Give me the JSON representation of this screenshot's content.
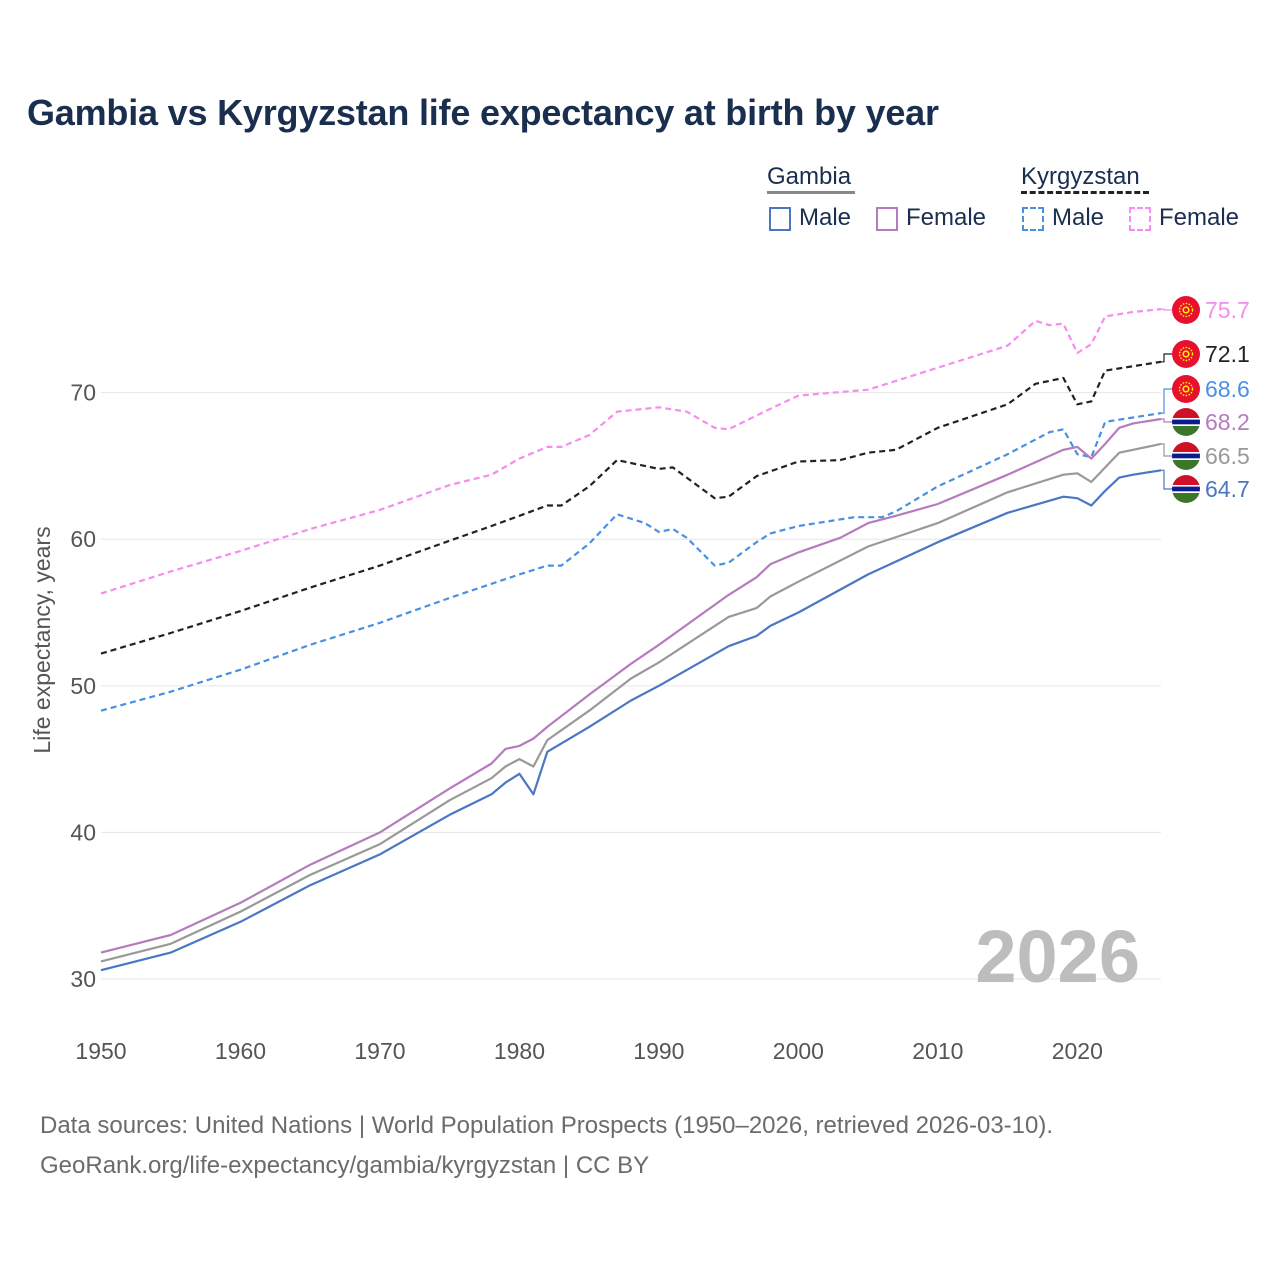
{
  "title": "Gambia vs Kyrgyzstan life expectancy at birth by year",
  "legend": {
    "groups": [
      {
        "name": "Gambia",
        "header_color": "#888888",
        "header_style": "solid",
        "items": [
          {
            "label": "Male",
            "color": "#4a76c4",
            "style": "solid"
          },
          {
            "label": "Female",
            "color": "#b67bbf",
            "style": "solid"
          }
        ]
      },
      {
        "name": "Kyrgyzstan",
        "header_color": "#222222",
        "header_style": "dashed",
        "items": [
          {
            "label": "Male",
            "color": "#4a90e2",
            "style": "dashed"
          },
          {
            "label": "Female",
            "color": "#f58cf0",
            "style": "dashed"
          }
        ]
      }
    ]
  },
  "year_watermark": "2026",
  "source": {
    "line1": "Data sources: United Nations | World Population Prospects (1950–2026, retrieved 2026-03-10).",
    "line2": "GeoRank.org/life-expectancy/gambia/kyrgyzstan | CC BY"
  },
  "chart_data": {
    "type": "line",
    "title": "Gambia vs Kyrgyzstan life expectancy at birth by year",
    "xlabel": "",
    "ylabel": "Life expectancy, years",
    "xlim": [
      1950,
      2026
    ],
    "ylim": [
      27,
      77
    ],
    "x_ticks": [
      1950,
      1960,
      1970,
      1980,
      1990,
      2000,
      2010,
      2020
    ],
    "y_ticks": [
      30,
      40,
      50,
      60,
      70
    ],
    "grid": true,
    "series": [
      {
        "name": "Kyrgyzstan Female",
        "country": "Kyrgyzstan",
        "color": "#f58cf0",
        "dash": true,
        "end_label": "75.7",
        "flag": "kyrgyzstan",
        "points": [
          [
            1950,
            56.3
          ],
          [
            1955,
            57.8
          ],
          [
            1960,
            59.2
          ],
          [
            1965,
            60.7
          ],
          [
            1970,
            62.0
          ],
          [
            1975,
            63.7
          ],
          [
            1978,
            64.4
          ],
          [
            1980,
            65.5
          ],
          [
            1982,
            66.3
          ],
          [
            1983,
            66.3
          ],
          [
            1985,
            67.1
          ],
          [
            1987,
            68.7
          ],
          [
            1990,
            69.0
          ],
          [
            1992,
            68.7
          ],
          [
            1994,
            67.6
          ],
          [
            1995,
            67.5
          ],
          [
            1998,
            68.9
          ],
          [
            2000,
            69.8
          ],
          [
            2005,
            70.2
          ],
          [
            2010,
            71.7
          ],
          [
            2015,
            73.2
          ],
          [
            2017,
            74.9
          ],
          [
            2018,
            74.6
          ],
          [
            2019,
            74.7
          ],
          [
            2020,
            72.7
          ],
          [
            2021,
            73.3
          ],
          [
            2022,
            75.2
          ],
          [
            2024,
            75.5
          ],
          [
            2026,
            75.7
          ]
        ]
      },
      {
        "name": "Kyrgyzstan Total",
        "country": "Kyrgyzstan",
        "color": "#222222",
        "dash": true,
        "end_label": "72.1",
        "flag": "kyrgyzstan",
        "points": [
          [
            1950,
            52.2
          ],
          [
            1955,
            53.6
          ],
          [
            1960,
            55.1
          ],
          [
            1965,
            56.7
          ],
          [
            1970,
            58.2
          ],
          [
            1975,
            59.9
          ],
          [
            1978,
            60.9
          ],
          [
            1980,
            61.6
          ],
          [
            1982,
            62.3
          ],
          [
            1983,
            62.3
          ],
          [
            1985,
            63.6
          ],
          [
            1987,
            65.4
          ],
          [
            1990,
            64.8
          ],
          [
            1991,
            64.9
          ],
          [
            1994,
            62.8
          ],
          [
            1995,
            62.9
          ],
          [
            1997,
            64.3
          ],
          [
            2000,
            65.3
          ],
          [
            2003,
            65.4
          ],
          [
            2005,
            65.9
          ],
          [
            2007,
            66.1
          ],
          [
            2010,
            67.6
          ],
          [
            2015,
            69.2
          ],
          [
            2017,
            70.6
          ],
          [
            2019,
            71.0
          ],
          [
            2020,
            69.2
          ],
          [
            2021,
            69.4
          ],
          [
            2022,
            71.5
          ],
          [
            2024,
            71.8
          ],
          [
            2026,
            72.1
          ]
        ]
      },
      {
        "name": "Kyrgyzstan Male",
        "country": "Kyrgyzstan",
        "color": "#4a90e2",
        "dash": true,
        "end_label": "68.6",
        "flag": "kyrgyzstan",
        "points": [
          [
            1950,
            48.3
          ],
          [
            1955,
            49.6
          ],
          [
            1960,
            51.1
          ],
          [
            1965,
            52.8
          ],
          [
            1970,
            54.3
          ],
          [
            1975,
            56.0
          ],
          [
            1980,
            57.6
          ],
          [
            1982,
            58.2
          ],
          [
            1983,
            58.2
          ],
          [
            1985,
            59.7
          ],
          [
            1987,
            61.7
          ],
          [
            1989,
            61.1
          ],
          [
            1990,
            60.5
          ],
          [
            1991,
            60.7
          ],
          [
            1992,
            60.1
          ],
          [
            1994,
            58.2
          ],
          [
            1995,
            58.4
          ],
          [
            1997,
            59.8
          ],
          [
            1998,
            60.4
          ],
          [
            2000,
            60.9
          ],
          [
            2004,
            61.5
          ],
          [
            2006,
            61.5
          ],
          [
            2007,
            61.9
          ],
          [
            2010,
            63.6
          ],
          [
            2015,
            65.8
          ],
          [
            2018,
            67.3
          ],
          [
            2019,
            67.5
          ],
          [
            2020,
            65.8
          ],
          [
            2021,
            65.6
          ],
          [
            2022,
            68.0
          ],
          [
            2024,
            68.3
          ],
          [
            2026,
            68.6
          ]
        ]
      },
      {
        "name": "Gambia Female",
        "country": "Gambia",
        "color": "#b67bbf",
        "dash": false,
        "end_label": "68.2",
        "flag": "gambia",
        "points": [
          [
            1950,
            31.8
          ],
          [
            1955,
            33.0
          ],
          [
            1960,
            35.2
          ],
          [
            1965,
            37.8
          ],
          [
            1970,
            40.0
          ],
          [
            1975,
            43.0
          ],
          [
            1978,
            44.7
          ],
          [
            1979,
            45.7
          ],
          [
            1980,
            45.9
          ],
          [
            1981,
            46.4
          ],
          [
            1982,
            47.2
          ],
          [
            1985,
            49.4
          ],
          [
            1988,
            51.5
          ],
          [
            1990,
            52.8
          ],
          [
            1995,
            56.2
          ],
          [
            1997,
            57.4
          ],
          [
            1998,
            58.3
          ],
          [
            2000,
            59.1
          ],
          [
            2003,
            60.1
          ],
          [
            2005,
            61.1
          ],
          [
            2007,
            61.6
          ],
          [
            2010,
            62.4
          ],
          [
            2015,
            64.4
          ],
          [
            2019,
            66.1
          ],
          [
            2020,
            66.3
          ],
          [
            2021,
            65.5
          ],
          [
            2022,
            66.5
          ],
          [
            2023,
            67.6
          ],
          [
            2024,
            67.9
          ],
          [
            2026,
            68.2
          ]
        ]
      },
      {
        "name": "Gambia Total",
        "country": "Gambia",
        "color": "#999999",
        "dash": false,
        "end_label": "66.5",
        "flag": "gambia",
        "points": [
          [
            1950,
            31.2
          ],
          [
            1955,
            32.4
          ],
          [
            1960,
            34.6
          ],
          [
            1965,
            37.1
          ],
          [
            1970,
            39.2
          ],
          [
            1975,
            42.2
          ],
          [
            1978,
            43.7
          ],
          [
            1979,
            44.5
          ],
          [
            1980,
            45.0
          ],
          [
            1981,
            44.5
          ],
          [
            1982,
            46.3
          ],
          [
            1985,
            48.3
          ],
          [
            1988,
            50.5
          ],
          [
            1990,
            51.6
          ],
          [
            1995,
            54.7
          ],
          [
            1997,
            55.3
          ],
          [
            1998,
            56.1
          ],
          [
            2000,
            57.1
          ],
          [
            2005,
            59.5
          ],
          [
            2010,
            61.1
          ],
          [
            2015,
            63.2
          ],
          [
            2019,
            64.4
          ],
          [
            2020,
            64.5
          ],
          [
            2021,
            63.9
          ],
          [
            2022,
            64.9
          ],
          [
            2023,
            65.9
          ],
          [
            2024,
            66.1
          ],
          [
            2026,
            66.5
          ]
        ]
      },
      {
        "name": "Gambia Male",
        "country": "Gambia",
        "color": "#4a76c4",
        "dash": false,
        "end_label": "64.7",
        "flag": "gambia",
        "points": [
          [
            1950,
            30.6
          ],
          [
            1955,
            31.8
          ],
          [
            1960,
            33.9
          ],
          [
            1965,
            36.4
          ],
          [
            1970,
            38.5
          ],
          [
            1975,
            41.2
          ],
          [
            1978,
            42.6
          ],
          [
            1979,
            43.4
          ],
          [
            1980,
            44.0
          ],
          [
            1981,
            42.6
          ],
          [
            1982,
            45.5
          ],
          [
            1985,
            47.2
          ],
          [
            1988,
            49.0
          ],
          [
            1990,
            50.0
          ],
          [
            1995,
            52.7
          ],
          [
            1997,
            53.4
          ],
          [
            1998,
            54.1
          ],
          [
            2000,
            55.0
          ],
          [
            2005,
            57.6
          ],
          [
            2010,
            59.8
          ],
          [
            2015,
            61.8
          ],
          [
            2019,
            62.9
          ],
          [
            2020,
            62.8
          ],
          [
            2021,
            62.3
          ],
          [
            2022,
            63.3
          ],
          [
            2023,
            64.2
          ],
          [
            2024,
            64.4
          ],
          [
            2026,
            64.7
          ]
        ]
      }
    ]
  }
}
